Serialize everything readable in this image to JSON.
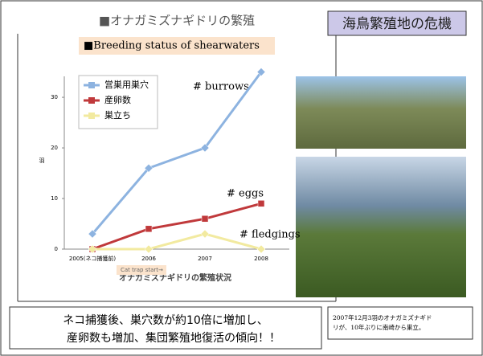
{
  "slide": {
    "title": "■オナガミズナギドリの繁殖",
    "heading": "海鳥繁殖地の危機",
    "summary": [
      "ネコ捕獲後、巣穴数が約10倍に増加し、",
      "産卵数も増加、集団繁殖地復活の傾向！！"
    ],
    "note": [
      "2007年12月3羽のオナガミズナギド",
      "リが、10年ぶりに南崎から巣立。"
    ]
  },
  "chart_data": {
    "type": "line",
    "title": "■Breeding status of shearwaters",
    "x_label": "オナガミズナギドリの繁殖状況",
    "y_label": "羽",
    "annotations": [
      "# burrows",
      "# eggs",
      "# fledgings",
      "Cat trap start→"
    ],
    "categories": [
      "2005(ネコ捕獲前)",
      "2006",
      "2007",
      "2008"
    ],
    "series": [
      {
        "name": "営巣用巣穴",
        "color": "#8db3e0",
        "values": [
          3,
          16,
          20,
          35
        ]
      },
      {
        "name": "産卵数",
        "color": "#c0393b",
        "values": [
          0,
          4,
          6,
          9
        ]
      },
      {
        "name": "巣立ち",
        "color": "#f2eaa0",
        "values": [
          0,
          0,
          3,
          0
        ]
      }
    ],
    "ylim": [
      0,
      37
    ],
    "yticks": [
      0,
      10,
      20,
      30
    ],
    "legend": "upper left"
  }
}
